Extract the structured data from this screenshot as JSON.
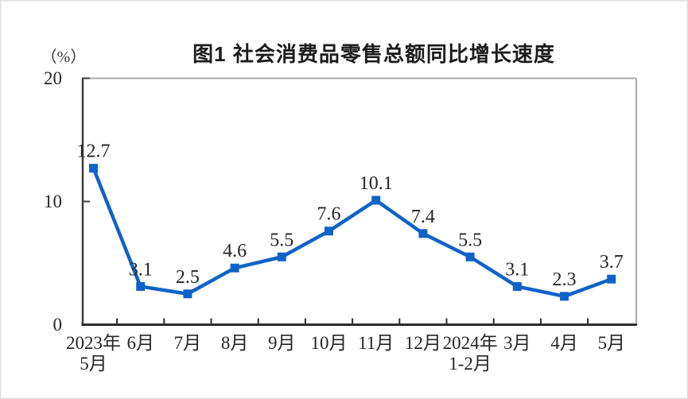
{
  "chart_data": {
    "type": "line",
    "title": "图1  社会消费品零售总额同比增长速度",
    "ylabel": "（%）",
    "xlabel": "",
    "categories": [
      "2023年\n5月",
      "6月",
      "7月",
      "8月",
      "9月",
      "10月",
      "11月",
      "12月",
      "2024年\n1-2月",
      "3月",
      "4月",
      "5月"
    ],
    "values": [
      12.7,
      3.1,
      2.5,
      4.6,
      5.5,
      7.6,
      10.1,
      7.4,
      5.5,
      3.1,
      2.3,
      3.7
    ],
    "ylim": [
      0,
      20
    ],
    "yticks": [
      0,
      10,
      20
    ],
    "grid": false,
    "legend": "none",
    "marker": "square",
    "line_color": "#0F63C8",
    "label_color": "#262626",
    "axis_color_primary": "#2b2b2b",
    "axis_color_secondary": "#a8a8a8"
  }
}
